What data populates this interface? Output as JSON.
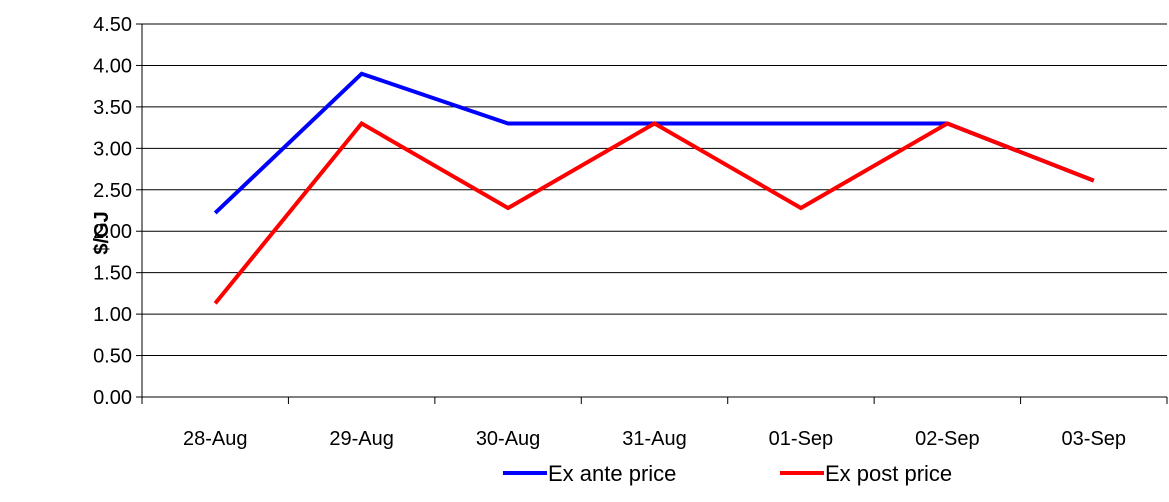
{
  "chart_data": {
    "type": "line",
    "title": "",
    "xlabel": "",
    "ylabel": "$/GJ",
    "categories": [
      "28-Aug",
      "29-Aug",
      "30-Aug",
      "31-Aug",
      "01-Sep",
      "02-Sep",
      "03-Sep"
    ],
    "y_ticks": [
      "0.00",
      "0.50",
      "1.00",
      "1.50",
      "2.00",
      "2.50",
      "3.00",
      "3.50",
      "4.00",
      "4.50"
    ],
    "ylim": [
      0,
      4.5
    ],
    "grid": true,
    "legend_position": "bottom",
    "series": [
      {
        "name": "Ex ante price",
        "color": "#0000ff",
        "x": [
          "28-Aug",
          "29-Aug",
          "30-Aug",
          "31-Aug",
          "01-Sep",
          "02-Sep",
          "03-Sep"
        ],
        "values": [
          2.22,
          3.9,
          3.3,
          3.3,
          3.3,
          3.3,
          2.61
        ]
      },
      {
        "name": "Ex post price",
        "color": "#ff0000",
        "x": [
          "28-Aug",
          "29-Aug",
          "30-Aug",
          "31-Aug",
          "01-Sep",
          "02-Sep",
          "03-Sep"
        ],
        "values": [
          1.13,
          3.3,
          2.28,
          3.3,
          2.28,
          3.3,
          2.61
        ]
      }
    ]
  }
}
